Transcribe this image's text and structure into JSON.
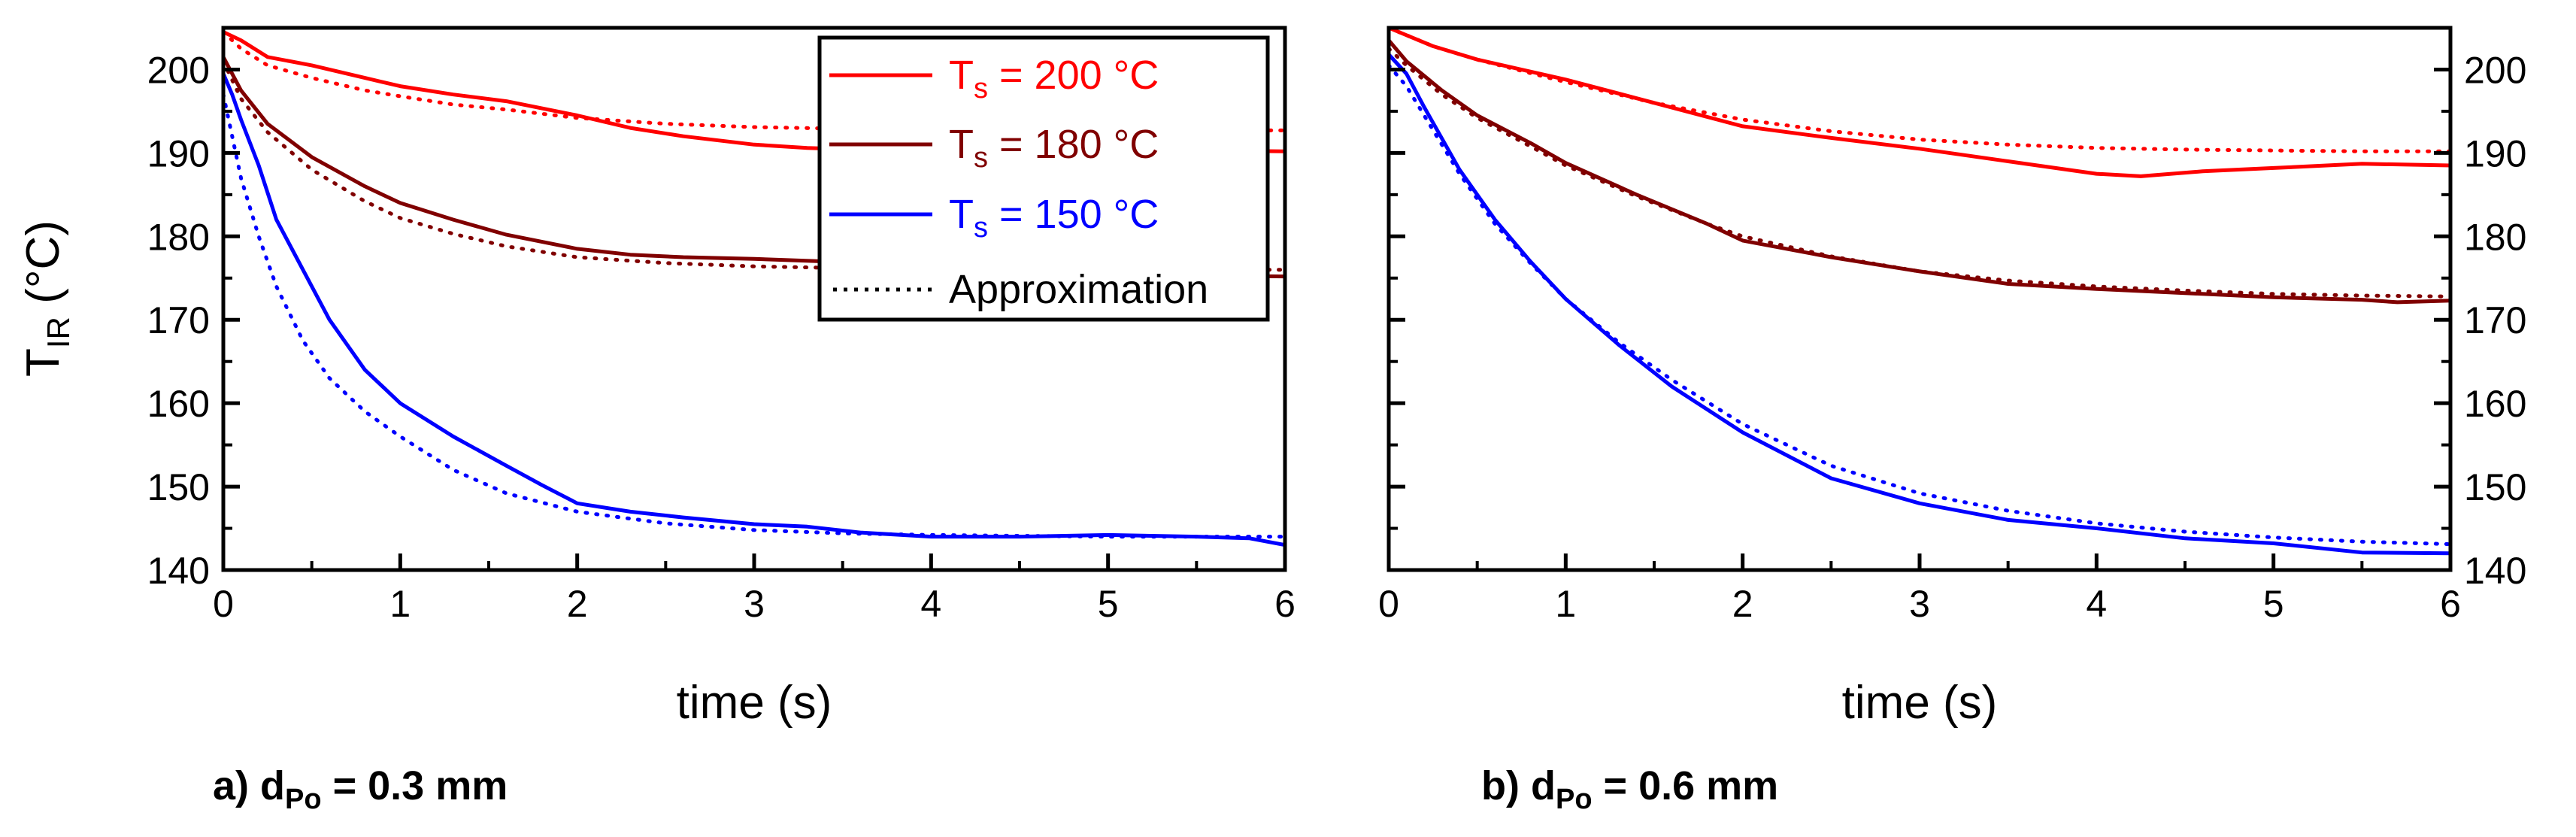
{
  "colors": {
    "red": "#ff0000",
    "darkred": "#800000",
    "blue": "#0000ff",
    "black": "#000000"
  },
  "chart_data": [
    {
      "type": "line",
      "panel": "a",
      "caption": {
        "prefix": "a) d",
        "sub": "Po",
        "suffix": " = 0.3 mm"
      },
      "xlabel": "time (s)",
      "ylabel": {
        "main": "T",
        "sub": "IR",
        "rest": " (°C)"
      },
      "xlim": [
        0,
        6
      ],
      "ylim": [
        140,
        205
      ],
      "xticks": [
        0,
        1,
        2,
        3,
        4,
        5,
        6
      ],
      "yticks": [
        140,
        150,
        160,
        170,
        180,
        190,
        200
      ],
      "ytick_labels_side": "left",
      "legend": {
        "placement": "top-right",
        "entries": [
          {
            "main": "T",
            "sub": "s",
            "rest": " = 200 °C",
            "color": "#ff0000",
            "style": "solid"
          },
          {
            "main": "T",
            "sub": "s",
            "rest": " = 180 °C",
            "color": "#800000",
            "style": "solid"
          },
          {
            "main": "T",
            "sub": "s",
            "rest": " = 150 °C",
            "color": "#0000ff",
            "style": "solid"
          },
          {
            "main": "Approximation",
            "sub": "",
            "rest": "",
            "color": "#000000",
            "style": "dotted"
          }
        ]
      },
      "series": [
        {
          "name": "T_s = 200 °C",
          "color": "#ff0000",
          "style": "solid",
          "x": [
            0,
            0.1,
            0.25,
            0.5,
            0.8,
            1.0,
            1.3,
            1.6,
            2.0,
            2.3,
            2.6,
            3.0,
            3.3,
            3.6,
            4.0,
            4.5,
            5.0,
            5.5,
            6.0
          ],
          "y": [
            204.5,
            203.5,
            201.5,
            200.5,
            199,
            198,
            197,
            196.2,
            194.5,
            193,
            192,
            191,
            190.6,
            190.4,
            190.3,
            190.2,
            190.2,
            190.3,
            190.2
          ]
        },
        {
          "name": "T_s = 200 °C approximation",
          "color": "#ff0000",
          "style": "dotted",
          "x": [
            0,
            0.1,
            0.25,
            0.5,
            0.8,
            1.0,
            1.3,
            1.6,
            2.0,
            2.5,
            3.0,
            3.5,
            4.0,
            4.5,
            5.0,
            5.5,
            6.0
          ],
          "y": [
            204.5,
            202.5,
            200.5,
            199,
            197.5,
            196.8,
            195.8,
            195.2,
            194.2,
            193.5,
            193.1,
            192.9,
            192.8,
            192.7,
            192.7,
            192.7,
            192.7
          ]
        },
        {
          "name": "T_s = 180 °C",
          "color": "#800000",
          "style": "solid",
          "x": [
            0,
            0.1,
            0.25,
            0.5,
            0.8,
            1.0,
            1.3,
            1.6,
            2.0,
            2.3,
            2.6,
            3.0,
            3.4,
            3.8,
            4.2,
            4.6,
            5.0,
            5.5,
            6.0
          ],
          "y": [
            201.5,
            197.5,
            193.5,
            189.5,
            186,
            184,
            182,
            180.2,
            178.5,
            177.8,
            177.5,
            177.3,
            177,
            176.5,
            176,
            175.8,
            175.5,
            175.3,
            175.2
          ]
        },
        {
          "name": "T_s = 180 °C approximation",
          "color": "#800000",
          "style": "dotted",
          "x": [
            0,
            0.1,
            0.25,
            0.5,
            0.8,
            1.0,
            1.3,
            1.6,
            2.0,
            2.5,
            3.0,
            3.5,
            4.0,
            4.5,
            5.0,
            5.5,
            6.0
          ],
          "y": [
            201,
            196.5,
            192.5,
            188,
            184.2,
            182.2,
            180.3,
            178.8,
            177.5,
            176.8,
            176.4,
            176.2,
            176.1,
            176,
            176,
            176,
            176
          ]
        },
        {
          "name": "T_s = 150 °C",
          "color": "#0000ff",
          "style": "solid",
          "x": [
            0,
            0.05,
            0.1,
            0.2,
            0.3,
            0.45,
            0.6,
            0.8,
            1.0,
            1.3,
            1.6,
            1.8,
            2.0,
            2.3,
            2.6,
            3.0,
            3.3,
            3.6,
            4.0,
            4.5,
            5.0,
            5.5,
            5.8,
            6.0
          ],
          "y": [
            199.5,
            197,
            194,
            188.5,
            182,
            176,
            170,
            164,
            160,
            156,
            152.5,
            150.2,
            148,
            147,
            146.3,
            145.5,
            145.2,
            144.5,
            144,
            144,
            144.2,
            144,
            143.8,
            143
          ]
        },
        {
          "name": "T_s = 150 °C approximation",
          "color": "#0000ff",
          "style": "dotted",
          "x": [
            0,
            0.05,
            0.1,
            0.2,
            0.3,
            0.45,
            0.6,
            0.8,
            1.0,
            1.3,
            1.6,
            2.0,
            2.5,
            3.0,
            3.5,
            4.0,
            4.5,
            5.0,
            5.5,
            6.0
          ],
          "y": [
            197,
            192,
            187,
            180,
            174,
            167.5,
            163,
            159,
            156,
            152,
            149.2,
            147,
            145.6,
            144.8,
            144.4,
            144.2,
            144.1,
            144,
            144,
            144
          ]
        }
      ]
    },
    {
      "type": "line",
      "panel": "b",
      "caption": {
        "prefix": "b) d",
        "sub": "Po",
        "suffix": " = 0.6 mm"
      },
      "xlabel": "time (s)",
      "xlim": [
        0,
        6
      ],
      "ylim": [
        140,
        205
      ],
      "xticks": [
        0,
        1,
        2,
        3,
        4,
        5,
        6
      ],
      "yticks": [
        140,
        150,
        160,
        170,
        180,
        190,
        200
      ],
      "ytick_labels_side": "right",
      "series": [
        {
          "name": "T_s = 200 °C",
          "color": "#ff0000",
          "style": "solid",
          "x": [
            0,
            0.25,
            0.5,
            1.0,
            1.5,
            2.0,
            2.5,
            3.0,
            3.5,
            4.0,
            4.25,
            4.6,
            5.0,
            5.5,
            6.0
          ],
          "y": [
            205,
            202.8,
            201.2,
            198.8,
            196,
            193.2,
            191.8,
            190.5,
            189,
            187.5,
            187.2,
            187.8,
            188.2,
            188.7,
            188.5
          ]
        },
        {
          "name": "T_s = 200 °C approximation",
          "color": "#ff0000",
          "style": "dotted",
          "x": [
            0,
            0.25,
            0.5,
            1.0,
            1.5,
            2.0,
            2.5,
            3.0,
            3.5,
            4.0,
            4.5,
            5.0,
            5.5,
            6.0
          ],
          "y": [
            205,
            202.8,
            201.2,
            198.5,
            196,
            194,
            192.6,
            191.6,
            191,
            190.6,
            190.4,
            190.3,
            190.2,
            190.2
          ]
        },
        {
          "name": "T_s = 180 °C",
          "color": "#800000",
          "style": "solid",
          "x": [
            0,
            0.1,
            0.3,
            0.5,
            0.8,
            1.0,
            1.4,
            1.8,
            2.0,
            2.5,
            3.0,
            3.5,
            4.0,
            4.5,
            5.0,
            5.5,
            5.7,
            6.0
          ],
          "y": [
            203.5,
            201,
            197.5,
            194.5,
            191.2,
            188.8,
            185,
            181.5,
            179.5,
            177.5,
            175.8,
            174.3,
            173.7,
            173.2,
            172.7,
            172.4,
            172.1,
            172.3
          ]
        },
        {
          "name": "T_s = 180 °C approximation",
          "color": "#800000",
          "style": "dotted",
          "x": [
            0,
            0.1,
            0.3,
            0.5,
            0.8,
            1.0,
            1.4,
            1.8,
            2.0,
            2.5,
            3.0,
            3.5,
            4.0,
            4.5,
            5.0,
            5.5,
            6.0
          ],
          "y": [
            202.5,
            200.5,
            197,
            194.2,
            190.8,
            188.5,
            184.8,
            181.5,
            180,
            177.6,
            175.8,
            174.7,
            174,
            173.5,
            173.1,
            172.9,
            172.8
          ]
        },
        {
          "name": "T_s = 150 °C",
          "color": "#0000ff",
          "style": "solid",
          "x": [
            0,
            0.1,
            0.2,
            0.4,
            0.6,
            0.8,
            1.0,
            1.3,
            1.6,
            2.0,
            2.5,
            3.0,
            3.5,
            4.0,
            4.5,
            5.0,
            5.5,
            6.0
          ],
          "y": [
            201.8,
            199.5,
            195.5,
            188,
            182,
            177,
            172.5,
            167,
            162,
            156.5,
            151,
            148,
            146,
            145,
            143.8,
            143.2,
            142.1,
            142
          ]
        },
        {
          "name": "T_s = 150 °C approximation",
          "color": "#0000ff",
          "style": "dotted",
          "x": [
            0,
            0.1,
            0.2,
            0.4,
            0.6,
            0.8,
            1.0,
            1.3,
            1.6,
            2.0,
            2.5,
            3.0,
            3.5,
            4.0,
            4.5,
            5.0,
            5.5,
            6.0
          ],
          "y": [
            200.5,
            198,
            194.5,
            187.5,
            181.5,
            176.8,
            172.5,
            167.3,
            162.8,
            157.5,
            152.5,
            149.2,
            147.1,
            145.6,
            144.6,
            143.9,
            143.4,
            143.1
          ]
        }
      ]
    }
  ]
}
